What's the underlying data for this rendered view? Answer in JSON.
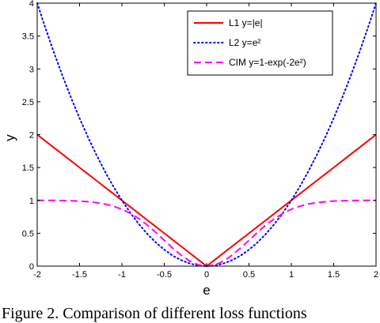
{
  "caption": "Figure 2. Comparison of different loss functions",
  "chart_data": {
    "type": "line",
    "xlabel": "e",
    "ylabel": "y",
    "xlim": [
      -2,
      2
    ],
    "ylim": [
      0,
      4
    ],
    "x_ticks": [
      "-2",
      "-1.5",
      "-1",
      "-0.5",
      "0",
      "0.5",
      "1",
      "1.5",
      "2"
    ],
    "y_ticks": [
      "0",
      "0.5",
      "1",
      "1.5",
      "2",
      "2.5",
      "3",
      "3.5",
      "4"
    ],
    "grid": false,
    "legend_position": "top-right",
    "x": [
      -2,
      -1.9,
      -1.8,
      -1.7,
      -1.6,
      -1.5,
      -1.4,
      -1.3,
      -1.2,
      -1.1,
      -1,
      -0.9,
      -0.8,
      -0.7,
      -0.6,
      -0.5,
      -0.4,
      -0.3,
      -0.2,
      -0.1,
      0,
      0.1,
      0.2,
      0.3,
      0.4,
      0.5,
      0.6,
      0.7,
      0.8,
      0.9,
      1,
      1.1,
      1.2,
      1.3,
      1.4,
      1.5,
      1.6,
      1.7,
      1.8,
      1.9,
      2
    ],
    "series": [
      {
        "legend": "L1 y=|e|",
        "color": "#ff0000",
        "dash": "solid",
        "values": [
          2,
          1.9,
          1.8,
          1.7,
          1.6,
          1.5,
          1.4,
          1.3,
          1.2,
          1.1,
          1,
          0.9,
          0.8,
          0.7,
          0.6,
          0.5,
          0.4,
          0.3,
          0.2,
          0.1,
          0,
          0.1,
          0.2,
          0.3,
          0.4,
          0.5,
          0.6,
          0.7,
          0.8,
          0.9,
          1,
          1.1,
          1.2,
          1.3,
          1.4,
          1.5,
          1.6,
          1.7,
          1.8,
          1.9,
          2
        ]
      },
      {
        "legend": "L2 y=e²",
        "color": "#0000ff",
        "dash": "dotted",
        "values": [
          4,
          3.61,
          3.24,
          2.89,
          2.56,
          2.25,
          1.96,
          1.69,
          1.44,
          1.21,
          1,
          0.81,
          0.64,
          0.49,
          0.36,
          0.25,
          0.16,
          0.09,
          0.04,
          0.01,
          0,
          0.01,
          0.04,
          0.09,
          0.16,
          0.25,
          0.36,
          0.49,
          0.64,
          0.81,
          1,
          1.21,
          1.44,
          1.69,
          1.96,
          2.25,
          2.56,
          2.89,
          3.24,
          3.61,
          4
        ]
      },
      {
        "legend": "CIM y=1-exp(-2e²)",
        "color": "#ff00ff",
        "dash": "dashed",
        "values": [
          1,
          1,
          1,
          0.997,
          0.994,
          0.989,
          0.98,
          0.966,
          0.944,
          0.911,
          0.865,
          0.802,
          0.722,
          0.625,
          0.513,
          0.393,
          0.274,
          0.165,
          0.077,
          0.02,
          0,
          0.02,
          0.077,
          0.165,
          0.274,
          0.393,
          0.513,
          0.625,
          0.722,
          0.802,
          0.865,
          0.911,
          0.944,
          0.966,
          0.98,
          0.989,
          0.994,
          0.997,
          1,
          1,
          1
        ]
      }
    ]
  }
}
